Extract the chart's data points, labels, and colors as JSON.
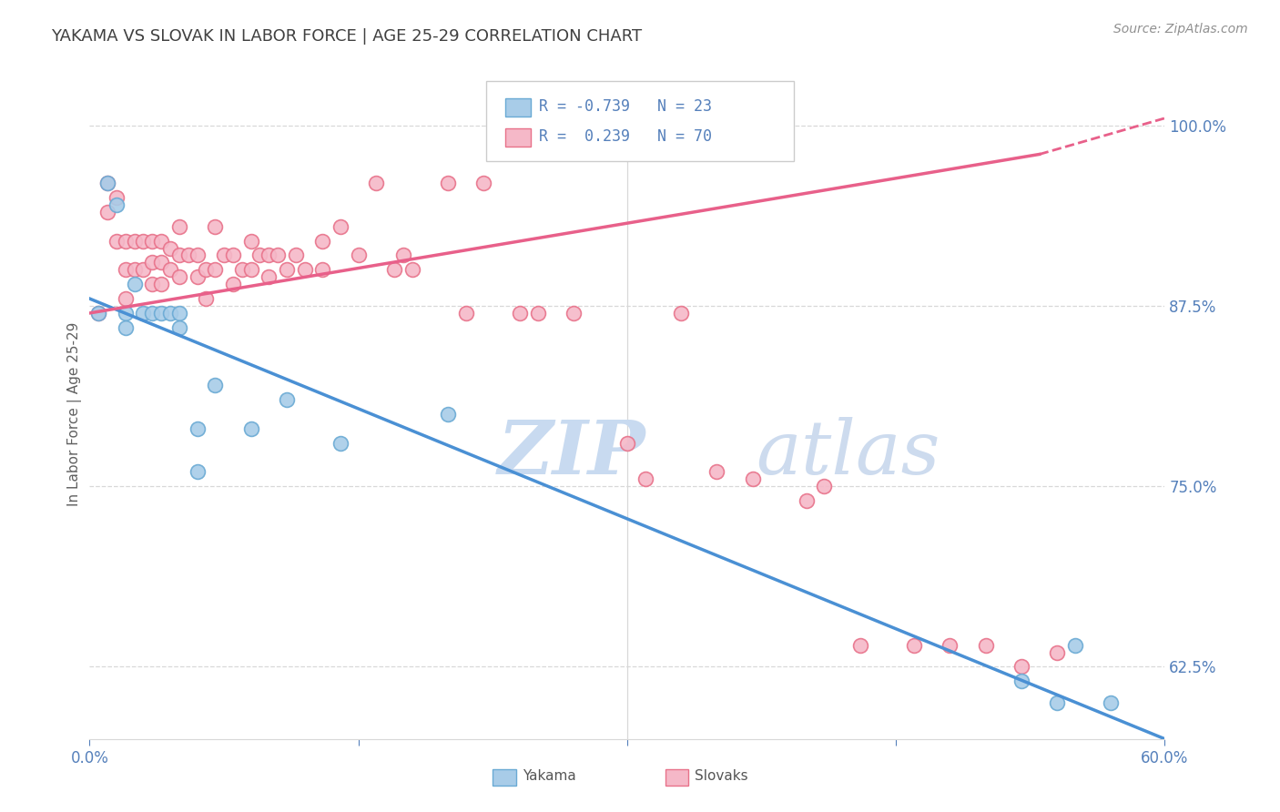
{
  "title": "YAKAMA VS SLOVAK IN LABOR FORCE | AGE 25-29 CORRELATION CHART",
  "source_text": "Source: ZipAtlas.com",
  "ylabel": "In Labor Force | Age 25-29",
  "xlim": [
    0.0,
    0.6
  ],
  "ylim": [
    0.575,
    1.025
  ],
  "xtick_positions": [
    0.0,
    0.15,
    0.3,
    0.45,
    0.6
  ],
  "xtick_labels": [
    "0.0%",
    "",
    "",
    "",
    "60.0%"
  ],
  "ytick_positions": [
    0.625,
    0.75,
    0.875,
    1.0
  ],
  "ytick_labels": [
    "62.5%",
    "75.0%",
    "87.5%",
    "100.0%"
  ],
  "yakama_dot_color": "#a8cce8",
  "yakama_edge_color": "#6aaad4",
  "slovak_dot_color": "#f5b8c8",
  "slovak_edge_color": "#e8728a",
  "trend_yakama_color": "#4a90d4",
  "trend_slovak_color": "#e8608a",
  "R_yakama": -0.739,
  "N_yakama": 23,
  "R_slovak": 0.239,
  "N_slovak": 70,
  "watermark_color": "#c8daf0",
  "grid_color": "#d8d8d8",
  "tick_color": "#5580bb",
  "title_color": "#404040",
  "ylabel_color": "#606060",
  "source_color": "#909090",
  "legend_edge_color": "#cccccc",
  "bottom_legend_text_color": "#555555",
  "yakama_x": [
    0.005,
    0.01,
    0.015,
    0.02,
    0.02,
    0.025,
    0.03,
    0.035,
    0.04,
    0.045,
    0.05,
    0.05,
    0.06,
    0.06,
    0.07,
    0.09,
    0.11,
    0.14,
    0.2,
    0.52,
    0.54,
    0.55,
    0.57
  ],
  "yakama_y": [
    0.87,
    0.96,
    0.945,
    0.87,
    0.86,
    0.89,
    0.87,
    0.87,
    0.87,
    0.87,
    0.87,
    0.86,
    0.79,
    0.76,
    0.82,
    0.79,
    0.81,
    0.78,
    0.8,
    0.615,
    0.6,
    0.64,
    0.6
  ],
  "slovak_x": [
    0.005,
    0.01,
    0.01,
    0.015,
    0.015,
    0.02,
    0.02,
    0.02,
    0.025,
    0.025,
    0.03,
    0.03,
    0.035,
    0.035,
    0.035,
    0.04,
    0.04,
    0.04,
    0.045,
    0.045,
    0.05,
    0.05,
    0.05,
    0.055,
    0.06,
    0.06,
    0.065,
    0.065,
    0.07,
    0.07,
    0.075,
    0.08,
    0.08,
    0.085,
    0.09,
    0.09,
    0.095,
    0.1,
    0.1,
    0.105,
    0.11,
    0.115,
    0.12,
    0.13,
    0.13,
    0.14,
    0.15,
    0.16,
    0.17,
    0.175,
    0.18,
    0.2,
    0.21,
    0.22,
    0.24,
    0.25,
    0.27,
    0.3,
    0.31,
    0.33,
    0.35,
    0.37,
    0.4,
    0.41,
    0.43,
    0.46,
    0.48,
    0.5,
    0.52,
    0.54
  ],
  "slovak_y": [
    0.87,
    0.96,
    0.94,
    0.95,
    0.92,
    0.92,
    0.9,
    0.88,
    0.92,
    0.9,
    0.92,
    0.9,
    0.92,
    0.905,
    0.89,
    0.92,
    0.905,
    0.89,
    0.915,
    0.9,
    0.93,
    0.91,
    0.895,
    0.91,
    0.91,
    0.895,
    0.9,
    0.88,
    0.93,
    0.9,
    0.91,
    0.91,
    0.89,
    0.9,
    0.92,
    0.9,
    0.91,
    0.91,
    0.895,
    0.91,
    0.9,
    0.91,
    0.9,
    0.92,
    0.9,
    0.93,
    0.91,
    0.96,
    0.9,
    0.91,
    0.9,
    0.96,
    0.87,
    0.96,
    0.87,
    0.87,
    0.87,
    0.78,
    0.755,
    0.87,
    0.76,
    0.755,
    0.74,
    0.75,
    0.64,
    0.64,
    0.64,
    0.64,
    0.625,
    0.635
  ],
  "trend_yakama_x0": 0.0,
  "trend_yakama_x1": 0.6,
  "trend_yakama_y0": 0.88,
  "trend_yakama_y1": 0.575,
  "trend_slovak_x0": 0.0,
  "trend_slovak_x1": 0.53,
  "trend_slovak_y0": 0.87,
  "trend_slovak_y1": 0.98,
  "trend_slovak_dash_x0": 0.53,
  "trend_slovak_dash_x1": 0.6,
  "trend_slovak_dash_y0": 0.98,
  "trend_slovak_dash_y1": 1.005
}
